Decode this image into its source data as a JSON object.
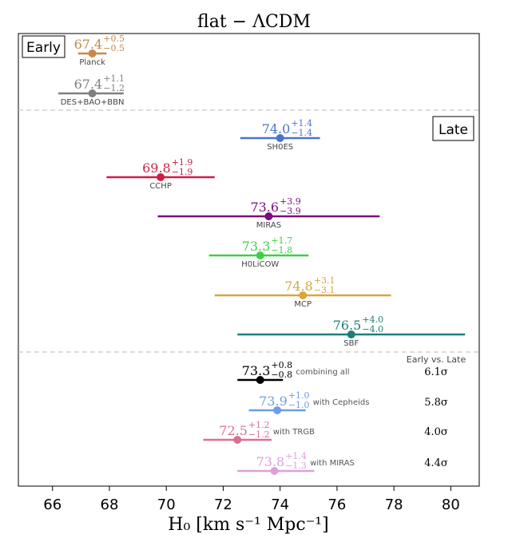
{
  "chart_data": {
    "type": "errorbar",
    "title": "flat − ΛCDM",
    "xlabel": "H₀ [km s⁻¹ Mpc⁻¹]",
    "xlim": [
      64.8,
      81.0
    ],
    "xticks": [
      66,
      68,
      70,
      72,
      74,
      76,
      78,
      80
    ],
    "grid": false,
    "section_labels": {
      "early": "Early",
      "late": "Late"
    },
    "comparison_header": "Early vs. Late",
    "measurements": [
      {
        "group": "early",
        "name": "Planck",
        "value": 67.4,
        "value_text": "67.4",
        "plus": "+0.5",
        "minus": "−0.5",
        "color": "#c8884a"
      },
      {
        "group": "early",
        "name": "DES+BAO+BBN",
        "value": 67.4,
        "value_text": "67.4",
        "plus": "+1.1",
        "minus": "−1.2",
        "color": "#7f7f7f"
      },
      {
        "group": "late",
        "name": "SH0ES",
        "value": 74.0,
        "value_text": "74.0",
        "plus": "+1.4",
        "minus": "−1.4",
        "color": "#4c72d0"
      },
      {
        "group": "late",
        "name": "CCHP",
        "value": 69.8,
        "value_text": "69.8",
        "plus": "+1.9",
        "minus": "−1.9",
        "color": "#cc1f45"
      },
      {
        "group": "late",
        "name": "MIRAS",
        "value": 73.6,
        "value_text": "73.6",
        "plus": "+3.9",
        "minus": "−3.9",
        "color": "#7d0c7d"
      },
      {
        "group": "late",
        "name": "H0LiCOW",
        "value": 73.3,
        "value_text": "73.3",
        "plus": "+1.7",
        "minus": "−1.8",
        "color": "#3ecf47"
      },
      {
        "group": "late",
        "name": "MCP",
        "value": 74.8,
        "value_text": "74.8",
        "plus": "+3.1",
        "minus": "−3.1",
        "color": "#d8a73a"
      },
      {
        "group": "late",
        "name": "SBF",
        "value": 76.5,
        "value_text": "76.5",
        "plus": "+4.0",
        "minus": "−4.0",
        "color": "#1c7f78"
      }
    ],
    "combined": [
      {
        "name": "combining all",
        "value": 73.3,
        "value_text": "73.3",
        "plus": "+0.8",
        "minus": "−0.8",
        "color": "#000000",
        "tension": "6.1σ"
      },
      {
        "name": "with Cepheids",
        "value": 73.9,
        "value_text": "73.9",
        "plus": "+1.0",
        "minus": "−1.0",
        "color": "#6e9de6",
        "tension": "5.8σ"
      },
      {
        "name": "with TRGB",
        "value": 72.5,
        "value_text": "72.5",
        "plus": "+1.2",
        "minus": "−1.2",
        "color": "#d9708f",
        "tension": "4.0σ"
      },
      {
        "name": "with MIRAS",
        "value": 73.8,
        "value_text": "73.8",
        "plus": "+1.4",
        "minus": "−1.3",
        "color": "#dda0dd",
        "tension": "4.4σ"
      }
    ]
  }
}
